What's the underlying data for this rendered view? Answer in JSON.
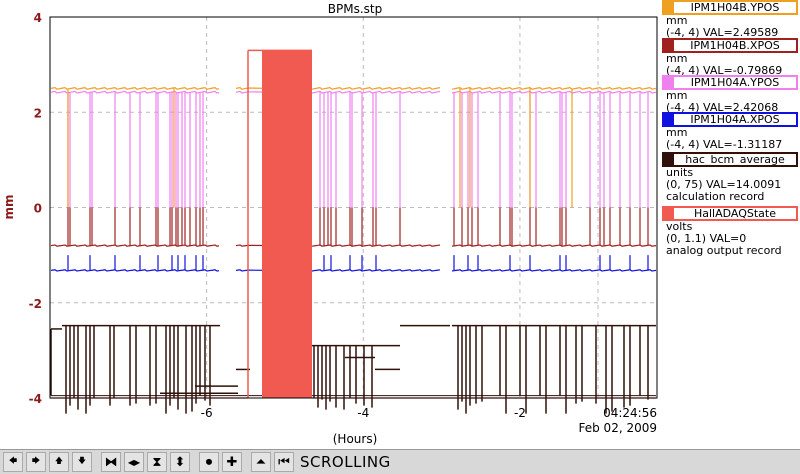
{
  "chart_data": {
    "type": "line",
    "title": "BPMs.stp",
    "xlabel": "(Hours)",
    "ylabel": "mm",
    "xlim": [
      -8.0,
      -0.25
    ],
    "ylim": [
      -4,
      4
    ],
    "x_ticks": [
      "-6",
      "-4",
      "-2"
    ],
    "y_ticks": [
      "4",
      "2",
      "0",
      "-2",
      "-4"
    ],
    "end_time": "04:24:56",
    "end_date": "Feb 02, 2009",
    "grid": true,
    "series": [
      {
        "name": "IPM1H04B.YPOS",
        "color": "#f0a020",
        "unit": "mm",
        "range": "(-4, 4)",
        "value": "VAL=2.49589"
      },
      {
        "name": "IPM1H04B.XPOS",
        "color": "#a02020",
        "unit": "mm",
        "range": "(-4, 4)",
        "value": "VAL=-0.79869"
      },
      {
        "name": "IPM1H04A.YPOS",
        "color": "#f080f0",
        "unit": "mm",
        "range": "(-4, 4)",
        "value": "VAL=2.42068"
      },
      {
        "name": "IPM1H04A.XPOS",
        "color": "#1010e0",
        "unit": "mm",
        "range": "(-4, 4)",
        "value": "VAL=-1.31187"
      },
      {
        "name": "hac_bcm_average",
        "color": "#301008",
        "unit": "units",
        "range": "(0, 75)",
        "value": "VAL=14.0091",
        "extra": "calculation record"
      },
      {
        "name": "HallADAQState",
        "color": "#f05a50",
        "unit": "volts",
        "range": "(0, 1.1)",
        "value": "VAL=0",
        "extra": "analog output record"
      }
    ]
  },
  "toolbar": {
    "buttons": [
      {
        "name": "scroll-left-button",
        "icon": "arrow-left-icon",
        "glyph": "🡄"
      },
      {
        "name": "scroll-right-button",
        "icon": "arrow-right-icon",
        "glyph": "🡆"
      },
      {
        "name": "scroll-up-button",
        "icon": "arrow-up-icon",
        "glyph": "🡅"
      },
      {
        "name": "scroll-down-button",
        "icon": "arrow-down-icon",
        "glyph": "🡇"
      },
      {
        "name": "zoom-in-time-button",
        "icon": "zoom-in-horizontal-icon",
        "glyph": "⧓"
      },
      {
        "name": "zoom-out-time-button",
        "icon": "zoom-out-horizontal-icon",
        "glyph": "◀▶"
      },
      {
        "name": "zoom-in-value-button",
        "icon": "zoom-in-vertical-icon",
        "glyph": "⧗"
      },
      {
        "name": "zoom-out-value-button",
        "icon": "zoom-out-vertical-icon",
        "glyph": "⬍"
      },
      {
        "name": "stop-button",
        "icon": "record-icon",
        "glyph": "⏺"
      },
      {
        "name": "add-button",
        "icon": "crosshair-icon",
        "glyph": "✚"
      },
      {
        "name": "autoscale-button",
        "icon": "autoscale-icon",
        "glyph": "⏶"
      },
      {
        "name": "back-button",
        "icon": "back-to-start-icon",
        "glyph": "⏮"
      }
    ],
    "mode_label": "SCROLLING"
  }
}
